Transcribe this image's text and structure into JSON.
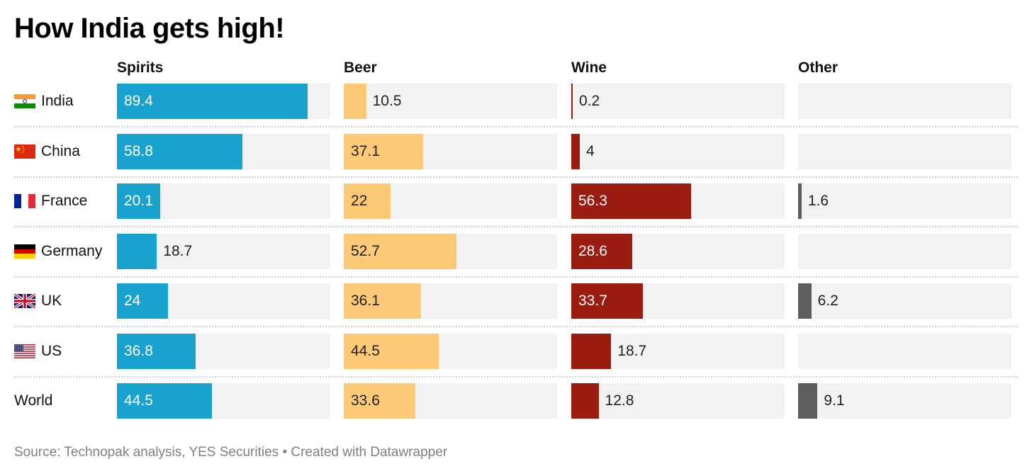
{
  "title": "How India gets high!",
  "source": "Source: Technopak analysis, YES Securities • Created with Datawrapper",
  "colors": {
    "Spirits": "#1aa2ce",
    "Beer": "#fcc977",
    "Wine": "#9b1c10",
    "Other": "#5d5d5d",
    "track": "#f2f2f2"
  },
  "flags": {
    "India": "india-flag-icon",
    "China": "china-flag-icon",
    "France": "france-flag-icon",
    "Germany": "germany-flag-icon",
    "UK": "uk-flag-icon",
    "US": "us-flag-icon"
  },
  "chart_data": {
    "type": "bar",
    "title": "How India gets high!",
    "categories": [
      "India",
      "China",
      "France",
      "Germany",
      "UK",
      "US",
      "World"
    ],
    "xlim": [
      0,
      100
    ],
    "series": [
      {
        "name": "Spirits",
        "values": [
          89.4,
          58.8,
          20.1,
          18.7,
          24,
          36.8,
          44.5
        ]
      },
      {
        "name": "Beer",
        "values": [
          10.5,
          37.1,
          22,
          52.7,
          36.1,
          44.5,
          33.6
        ]
      },
      {
        "name": "Wine",
        "values": [
          0.2,
          4,
          56.3,
          28.6,
          33.7,
          18.7,
          12.8
        ]
      },
      {
        "name": "Other",
        "values": [
          null,
          null,
          1.6,
          null,
          6.2,
          null,
          9.1
        ]
      }
    ]
  }
}
